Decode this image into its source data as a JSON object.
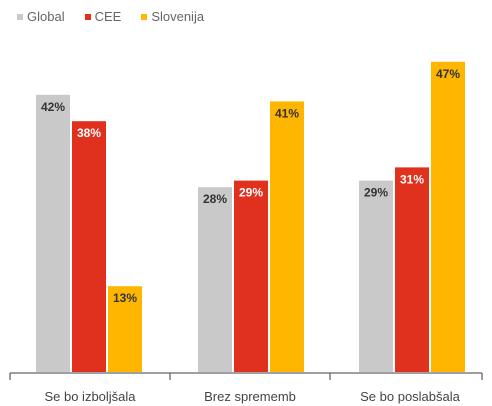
{
  "chart_data": {
    "type": "bar",
    "categories": [
      "Se bo izboljšala",
      "Brez sprememb",
      "Se bo poslabšala"
    ],
    "series": [
      {
        "name": "Global",
        "values": [
          42,
          28,
          29
        ],
        "color": "#c9c9c9"
      },
      {
        "name": "CEE",
        "values": [
          38,
          29,
          31
        ],
        "color": "#e0301e"
      },
      {
        "name": "Slovenija",
        "values": [
          13,
          41,
          47
        ],
        "color": "#ffb600"
      }
    ],
    "value_suffix": "%",
    "ylim": [
      0,
      50
    ],
    "grid": false,
    "legend": "top-left",
    "label_colors": {
      "Global": "#333333",
      "CEE": "#ffffff",
      "Slovenija": "#333333"
    },
    "axis_color": "#666666"
  }
}
